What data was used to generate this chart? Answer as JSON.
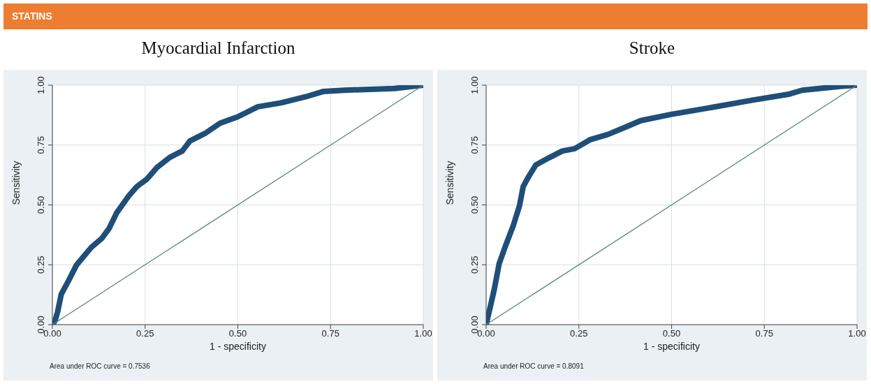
{
  "chart_data": [
    {
      "type": "line",
      "subtitle": "STATINS",
      "title": "Myocardial Infarction",
      "xlabel": "1 - specificity",
      "ylabel": "Sensitivity",
      "annotations": [
        "Area under ROC curve = 0.7536"
      ],
      "grid": true,
      "xlim": [
        0,
        1
      ],
      "ylim": [
        0,
        1
      ],
      "xticks": [
        {
          "value": 0,
          "label": "0.00"
        },
        {
          "value": 0.25,
          "label": "0.25"
        },
        {
          "value": 0.5,
          "label": "0.50"
        },
        {
          "value": 0.75,
          "label": "0.75"
        },
        {
          "value": 1,
          "label": "1.00"
        }
      ],
      "yticks": [
        {
          "value": 0,
          "label": "0.00"
        },
        {
          "value": 0.25,
          "label": "0.25"
        },
        {
          "value": 0.5,
          "label": "0.50"
        },
        {
          "value": 0.75,
          "label": "0.75"
        },
        {
          "value": 1,
          "label": "1.00"
        }
      ],
      "series": [
        {
          "color": "#1f4e79",
          "x": [
            0,
            0.007,
            0.014,
            0.024,
            0.044,
            0.065,
            0.105,
            0.133,
            0.153,
            0.173,
            0.207,
            0.228,
            0.255,
            0.282,
            0.316,
            0.35,
            0.371,
            0.412,
            0.452,
            0.5,
            0.554,
            0.616,
            0.684,
            0.731,
            0.786,
            0.922,
            1
          ],
          "values": [
            0,
            0.016,
            0.053,
            0.127,
            0.185,
            0.249,
            0.323,
            0.36,
            0.402,
            0.466,
            0.54,
            0.577,
            0.608,
            0.656,
            0.698,
            0.725,
            0.767,
            0.799,
            0.841,
            0.868,
            0.91,
            0.926,
            0.952,
            0.974,
            0.979,
            0.986,
            1
          ]
        },
        {
          "color": "#5a8a7a",
          "x": [
            0,
            1
          ],
          "values": [
            0,
            1
          ]
        }
      ]
    },
    {
      "type": "line",
      "title": "Stroke",
      "xlabel": "1 - specificity",
      "ylabel": "Sensitivity",
      "annotations": [
        "Area under ROC curve = 0.8091"
      ],
      "grid": true,
      "xlim": [
        0,
        1
      ],
      "ylim": [
        0,
        1
      ],
      "xticks": [
        {
          "value": 0,
          "label": "0.00"
        },
        {
          "value": 0.25,
          "label": "0.25"
        },
        {
          "value": 0.5,
          "label": "0.50"
        },
        {
          "value": 0.75,
          "label": "0.75"
        },
        {
          "value": 1,
          "label": "1.00"
        }
      ],
      "yticks": [
        {
          "value": 0,
          "label": "0.00"
        },
        {
          "value": 0.25,
          "label": "0.25"
        },
        {
          "value": 0.5,
          "label": "0.50"
        },
        {
          "value": 0.75,
          "label": "0.75"
        },
        {
          "value": 1,
          "label": "1.00"
        }
      ],
      "series": [
        {
          "color": "#1f4e79",
          "x": [
            0,
            0.008,
            0.022,
            0.035,
            0.052,
            0.073,
            0.09,
            0.1,
            0.113,
            0.134,
            0.171,
            0.205,
            0.239,
            0.28,
            0.328,
            0.376,
            0.417,
            0.498,
            0.6,
            0.716,
            0.818,
            0.852,
            0.954,
            1
          ],
          "values": [
            0,
            0.053,
            0.148,
            0.254,
            0.328,
            0.413,
            0.497,
            0.577,
            0.614,
            0.667,
            0.698,
            0.725,
            0.735,
            0.772,
            0.794,
            0.825,
            0.852,
            0.878,
            0.905,
            0.937,
            0.963,
            0.979,
            0.995,
            1
          ]
        },
        {
          "color": "#5a8a7a",
          "x": [
            0,
            1
          ],
          "values": [
            0,
            1
          ]
        }
      ]
    }
  ]
}
